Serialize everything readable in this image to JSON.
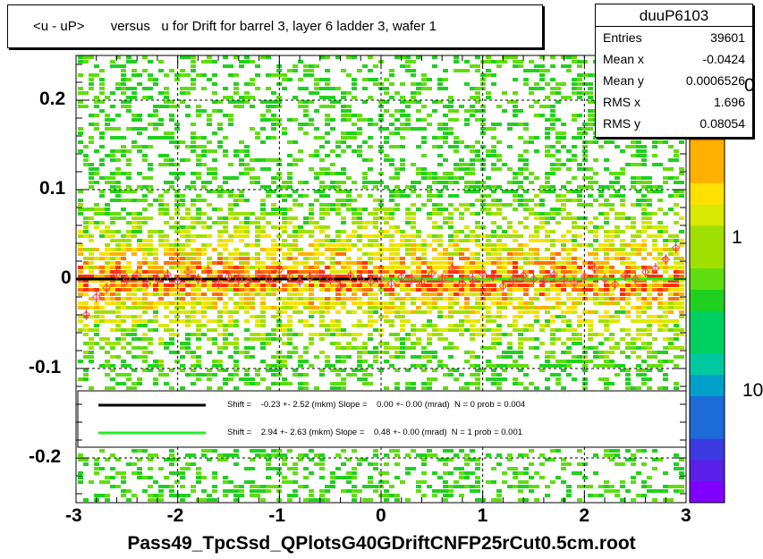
{
  "title": "<u - uP>       versus   u for Drift for barrel 3, layer 6 ladder 3, wafer 1",
  "stats": {
    "name": "duuP6103",
    "rows": [
      {
        "label": "Entries",
        "value": "39601"
      },
      {
        "label": "Mean x",
        "value": "-0.0424"
      },
      {
        "label": "Mean y",
        "value": "0.0006526"
      },
      {
        "label": "RMS x",
        "value": "1.696"
      },
      {
        "label": "RMS y",
        "value": "0.08054"
      }
    ]
  },
  "legend": {
    "entries": [
      {
        "color": "#000000",
        "text": "Shift =    -0.23 +- 2.52 (mkm) Slope =    0.00 +- 0.00 (mrad)  N = 0 prob = 0.004"
      },
      {
        "color": "#22ee22",
        "text": "Shift =    2.94 +- 2.63 (mkm) Slope =    0.48 +- 0.00 (mrad)  N = 1 prob = 0.001"
      }
    ]
  },
  "palette_labels": [
    "0",
    "1",
    "10"
  ],
  "x_axis_label": "Pass49_TpcSsd_QPlotsG40GDriftCNFP25rCut0.5cm.root",
  "chart_data": {
    "type": "heatmap",
    "title": "<u - uP>       versus   u for Drift for barrel 3, layer 6 ladder 3, wafer 1",
    "xlabel": "Pass49_TpcSsd_QPlotsG40GDriftCNFP25rCut0.5cm.root",
    "ylabel": "",
    "xlim": [
      -3,
      3
    ],
    "ylim": [
      -0.25,
      0.25
    ],
    "x_ticks": [
      "-3",
      "-2",
      "-1",
      "0",
      "1",
      "2",
      "3"
    ],
    "y_ticks": [
      "-0.2",
      "-0.1",
      "0",
      "0.1",
      "0.2"
    ],
    "grid": true,
    "log_z": true,
    "palette_colors": [
      "#7f00ff",
      "#5a1fe8",
      "#3a3ae0",
      "#1c6bd8",
      "#00a0c8",
      "#00c8a0",
      "#00d060",
      "#20d020",
      "#60dd10",
      "#a0e000",
      "#d8e800",
      "#ffe000",
      "#ffb000",
      "#ff7000",
      "#ff3000",
      "#ee1000"
    ],
    "profile_points": {
      "x": [
        -2.9,
        -2.8,
        -2.7,
        -2.6,
        -2.5,
        -2.4,
        -2.3,
        -2.2,
        -2.1,
        -2.0,
        -1.9,
        -1.8,
        -1.7,
        -1.6,
        -1.5,
        -1.4,
        -1.3,
        -1.2,
        -1.1,
        -1.0,
        -0.9,
        -0.8,
        -0.7,
        -0.6,
        -0.5,
        -0.4,
        -0.3,
        -0.2,
        -0.1,
        0.0,
        0.1,
        0.2,
        0.3,
        0.4,
        0.5,
        0.6,
        0.7,
        0.8,
        0.9,
        1.0,
        1.1,
        1.2,
        1.3,
        1.4,
        1.5,
        1.6,
        1.7,
        1.8,
        1.9,
        2.0,
        2.1,
        2.2,
        2.3,
        2.4,
        2.5,
        2.6,
        2.7,
        2.8,
        2.9
      ],
      "y": [
        -0.04,
        -0.02,
        -0.01,
        0.005,
        0.0,
        0.005,
        -0.005,
        0.0,
        0.005,
        -0.003,
        0.008,
        0.0,
        0.01,
        -0.005,
        0.003,
        0.0,
        -0.002,
        0.006,
        0.0,
        0.01,
        0.003,
        -0.003,
        0.002,
        0.005,
        0.0,
        -0.008,
        0.004,
        0.0,
        -0.003,
        0.0,
        -0.005,
        0.002,
        0.0,
        -0.003,
        0.006,
        0.0,
        0.012,
        -0.005,
        0.0,
        0.006,
        0.003,
        -0.008,
        0.0,
        0.004,
        0.0,
        -0.002,
        0.005,
        0.0,
        -0.004,
        0.003,
        0.012,
        0.0,
        -0.006,
        0.004,
        0.0,
        0.008,
        0.012,
        0.022,
        0.035
      ]
    },
    "fit_lines": [
      {
        "x": [
          -3,
          0
        ],
        "y": [
          0.0,
          0.0
        ],
        "color": "#000000"
      },
      {
        "x": [
          0,
          3
        ],
        "y": [
          0.0,
          0.0
        ],
        "color": "#22ee22"
      }
    ]
  }
}
